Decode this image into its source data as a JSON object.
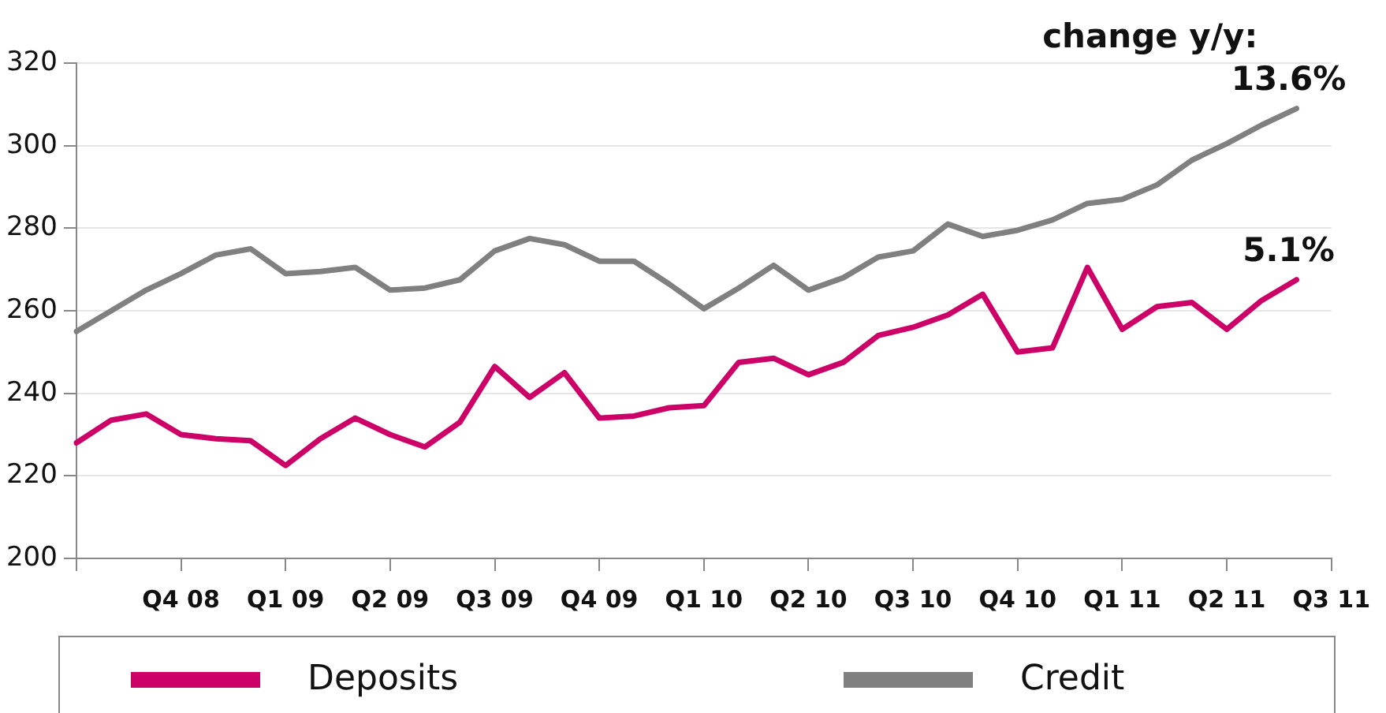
{
  "chart_data": {
    "type": "line",
    "categories": [
      null,
      null,
      null,
      "Q4 08",
      null,
      null,
      "Q1 09",
      null,
      null,
      "Q2 09",
      null,
      null,
      "Q3 09",
      null,
      null,
      "Q4 09",
      null,
      null,
      "Q1 10",
      null,
      null,
      "Q2 10",
      null,
      null,
      "Q3 10",
      null,
      null,
      "Q4 10",
      null,
      null,
      "Q1 11",
      null,
      null,
      "Q2 11",
      null,
      null,
      "Q3 11"
    ],
    "series": [
      {
        "name": "Deposits",
        "color": "#cc0066",
        "values": [
          228,
          233.5,
          235,
          230,
          229,
          228.5,
          222.5,
          229,
          234,
          230,
          227,
          233,
          246.5,
          239,
          245,
          234,
          234.5,
          236.5,
          237,
          247.5,
          248.5,
          244.5,
          247.5,
          254,
          256,
          259,
          264,
          250,
          251,
          270.5,
          255.5,
          261,
          262,
          255.5,
          262.5,
          267.5,
          null
        ]
      },
      {
        "name": "Credit",
        "color": "#808080",
        "values": [
          255,
          260,
          265,
          269,
          273.5,
          275,
          269,
          269.5,
          270.5,
          265,
          265.5,
          267.5,
          274.5,
          277.5,
          276,
          272,
          272,
          266.5,
          260.5,
          265.5,
          271,
          265,
          268,
          273,
          274.5,
          281,
          278,
          279.5,
          282,
          286,
          287,
          290.5,
          296.5,
          300.5,
          305,
          309,
          null
        ]
      }
    ],
    "ylim": [
      200,
      320
    ],
    "yticks": [
      200,
      220,
      240,
      260,
      280,
      300,
      320
    ],
    "grid": "y",
    "legend": "bottom",
    "marker": "none",
    "line_style": "solid",
    "annotations": [
      "change y/y:",
      {
        "text": "13.6%",
        "y": 309
      },
      {
        "text": "5.1%",
        "y": 267.5
      }
    ]
  }
}
